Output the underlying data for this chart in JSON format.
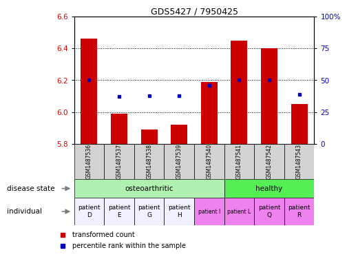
{
  "title": "GDS5427 / 7950425",
  "samples": [
    "GSM1487536",
    "GSM1487537",
    "GSM1487538",
    "GSM1487539",
    "GSM1487540",
    "GSM1487541",
    "GSM1487542",
    "GSM1487543"
  ],
  "red_values": [
    6.46,
    5.99,
    5.89,
    5.92,
    6.19,
    6.45,
    6.4,
    6.05
  ],
  "blue_values": [
    50,
    37,
    38,
    38,
    46,
    50,
    50,
    39
  ],
  "ylim_left": [
    5.8,
    6.6
  ],
  "ylim_right": [
    0,
    100
  ],
  "yticks_left": [
    5.8,
    6.0,
    6.2,
    6.4,
    6.6
  ],
  "yticks_right": [
    0,
    25,
    50,
    75,
    100
  ],
  "grid_yticks": [
    6.0,
    6.2,
    6.4
  ],
  "osteo_color": "#B0F0B0",
  "healthy_color": "#55EE55",
  "indiv_white_color": "#F0F0FF",
  "indiv_pink_color": "#EE82EE",
  "individual_labels": [
    "patient\nD",
    "patient\nE",
    "patient\nG",
    "patient\nH",
    "patient I",
    "patient L",
    "patient\nQ",
    "patient\nR"
  ],
  "individual_colors": [
    "#F0F0FF",
    "#F0F0FF",
    "#F0F0FF",
    "#F0F0FF",
    "#EE82EE",
    "#EE82EE",
    "#EE82EE",
    "#EE82EE"
  ],
  "individual_small": [
    false,
    false,
    false,
    false,
    true,
    true,
    false,
    false
  ],
  "legend_red_label": "transformed count",
  "legend_blue_label": "percentile rank within the sample",
  "red_color": "#CC0000",
  "blue_color": "#0000BB",
  "bar_base": 5.8,
  "sample_bg_color": "#D3D3D3"
}
